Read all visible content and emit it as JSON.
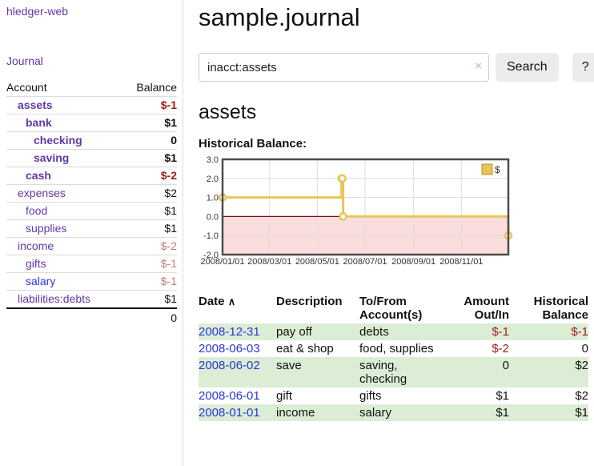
{
  "brand": "hledger-web",
  "nav": {
    "journal": "Journal"
  },
  "sidebar": {
    "headers": {
      "account": "Account",
      "balance": "Balance"
    },
    "accounts": [
      {
        "name": "assets",
        "depth": 1,
        "balance": "$-1",
        "matched": true,
        "balance_tone": "neg-strong",
        "link_state": "visited"
      },
      {
        "name": "bank",
        "depth": 2,
        "balance": "$1",
        "matched": true,
        "balance_tone": "pos",
        "link_state": "visited"
      },
      {
        "name": "checking",
        "depth": 3,
        "balance": "0",
        "matched": true,
        "balance_tone": "pos",
        "link_state": "visited"
      },
      {
        "name": "saving",
        "depth": 3,
        "balance": "$1",
        "matched": true,
        "balance_tone": "pos",
        "link_state": "visited"
      },
      {
        "name": "cash",
        "depth": 2,
        "balance": "$-2",
        "matched": true,
        "balance_tone": "neg-strong",
        "link_state": "visited"
      },
      {
        "name": "expenses",
        "depth": 1,
        "balance": "$2",
        "matched": false,
        "balance_tone": "pos",
        "link_state": "visited"
      },
      {
        "name": "food",
        "depth": 2,
        "balance": "$1",
        "matched": false,
        "balance_tone": "pos",
        "link_state": "visited"
      },
      {
        "name": "supplies",
        "depth": 2,
        "balance": "$1",
        "matched": false,
        "balance_tone": "pos",
        "link_state": "visited"
      },
      {
        "name": "income",
        "depth": 1,
        "balance": "$-2",
        "matched": false,
        "balance_tone": "neg-soft",
        "link_state": "visited"
      },
      {
        "name": "gifts",
        "depth": 2,
        "balance": "$-1",
        "matched": false,
        "balance_tone": "neg-soft",
        "link_state": "visited"
      },
      {
        "name": "salary",
        "depth": 2,
        "balance": "$-1",
        "matched": false,
        "balance_tone": "neg-soft",
        "link_state": "unvisited"
      },
      {
        "name": "liabilities:debts",
        "depth": 1,
        "balance": "$1",
        "matched": false,
        "balance_tone": "pos",
        "link_state": "visited"
      }
    ],
    "total": "0"
  },
  "header": {
    "title": "sample.journal"
  },
  "search": {
    "query": "inacct:assets",
    "clear_icon": "×",
    "button": "Search",
    "help_button": "?"
  },
  "account_view": {
    "heading": "assets",
    "chart_title": "Historical Balance:"
  },
  "chart_data": {
    "type": "line",
    "step": true,
    "title": "Historical Balance:",
    "series": [
      {
        "name": "$",
        "points": [
          [
            "2008/01/01",
            1.0
          ],
          [
            "2008/06/01",
            2.0
          ],
          [
            "2008/06/02",
            2.0
          ],
          [
            "2008/06/03",
            0.0
          ],
          [
            "2008/12/31",
            -1.0
          ]
        ]
      }
    ],
    "ylim": [
      -2.0,
      3.0
    ],
    "yticks": [
      3.0,
      2.0,
      1.0,
      0.0,
      -1.0,
      -2.0
    ],
    "xticks": [
      "2008/01/01",
      "2008/03/01",
      "2008/05/01",
      "2008/07/01",
      "2008/09/01",
      "2008/11/01"
    ],
    "legend": {
      "position": "top-right",
      "label": "$"
    },
    "grid": true,
    "colors": {
      "line": "#e9c45a",
      "marker_fill": "#ffffff",
      "negative_region": "#fbdddd",
      "zero_line": "#7a0c0c",
      "frame": "#4d4d4d",
      "grid": "#dddddd"
    }
  },
  "register": {
    "sort": {
      "column": "Date",
      "direction": "ascending",
      "icon": "∧"
    },
    "columns": [
      "Date",
      "Description",
      "To/From Account(s)",
      "Amount Out/In",
      "Historical Balance"
    ],
    "rows": [
      {
        "date": "2008-12-31",
        "description": "pay off",
        "accounts": "debts",
        "amount": "$-1",
        "amount_tone": "neg",
        "balance": "$-1",
        "balance_tone": "neg"
      },
      {
        "date": "2008-06-03",
        "description": "eat & shop",
        "accounts": "food, supplies",
        "amount": "$-2",
        "amount_tone": "neg",
        "balance": "0",
        "balance_tone": "pos"
      },
      {
        "date": "2008-06-02",
        "description": "save",
        "accounts": "saving, checking",
        "amount": "0",
        "amount_tone": "pos",
        "balance": "$2",
        "balance_tone": "pos"
      },
      {
        "date": "2008-06-01",
        "description": "gift",
        "accounts": "gifts",
        "amount": "$1",
        "amount_tone": "pos",
        "balance": "$2",
        "balance_tone": "pos"
      },
      {
        "date": "2008-01-01",
        "description": "income",
        "accounts": "salary",
        "amount": "$1",
        "amount_tone": "pos",
        "balance": "$1",
        "balance_tone": "pos"
      }
    ]
  },
  "colors": {
    "link_visited": "#6138a5",
    "link_unvisited": "#2936d8",
    "negative_strong": "#9c1b1b",
    "negative_soft": "#bb7c7c",
    "row_stripe_green": "#dcedd6",
    "accent_gold": "#e9c45a"
  }
}
